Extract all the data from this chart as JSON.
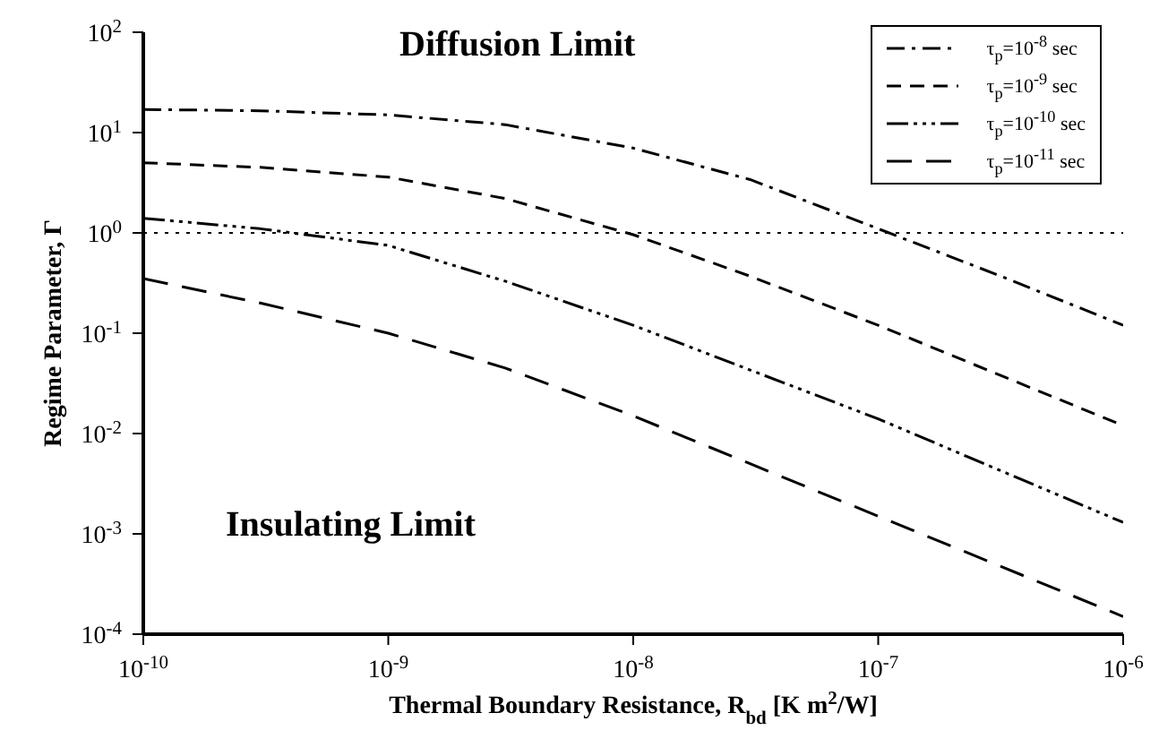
{
  "chart_data": {
    "type": "line",
    "xlabel": "Thermal Boundary Resistance, R$_{bd}$ [K m$^{2}$/W]",
    "ylabel": "Regime Parameter, Γ",
    "x": [
      1e-10,
      3e-10,
      1e-09,
      3e-09,
      1e-08,
      3e-08,
      1e-07,
      3e-07,
      1e-06
    ],
    "series": [
      {
        "name": "τ$_{p}$=10$^{-8}$ sec",
        "color": "#000000",
        "line_style": "dashed",
        "values": [
          17,
          16.5,
          15,
          12,
          7,
          3.4,
          1.1,
          0.39,
          0.12
        ]
      },
      {
        "name": "τ$_{p}$=10$^{-9}$ sec",
        "color": "#000000",
        "line_style": "dashed",
        "values": [
          5,
          4.5,
          3.6,
          2.2,
          0.96,
          0.37,
          0.12,
          0.04,
          0.012
        ]
      },
      {
        "name": "τ$_{p}$=10$^{-10}$ sec",
        "color": "#000000",
        "line_style": "dashed",
        "values": [
          1.4,
          1.1,
          0.75,
          0.33,
          0.12,
          0.043,
          0.014,
          0.0045,
          0.0013
        ]
      },
      {
        "name": "τ$_{p}$=10$^{-11}$ sec",
        "color": "#000000",
        "line_style": "dashed",
        "values": [
          0.35,
          0.2,
          0.1,
          0.045,
          0.015,
          0.005,
          0.0015,
          0.0005,
          0.00015
        ]
      }
    ],
    "log": "xy",
    "xlim": [
      1e-10,
      1e-06
    ],
    "ylim": [
      0.0001,
      100
    ],
    "xticks": [
      {
        "value": 1e-10,
        "label": "10$^{-10}$"
      },
      {
        "value": 1e-09,
        "label": "10$^{-9}$"
      },
      {
        "value": 1e-08,
        "label": "10$^{-8}$"
      },
      {
        "value": 1e-07,
        "label": "10$^{-7}$"
      },
      {
        "value": 1e-06,
        "label": "10$^{-6}$"
      }
    ],
    "yticks": [
      {
        "value": 0.0001,
        "label": "10$^{-4}$"
      },
      {
        "value": 0.001,
        "label": "10$^{-3}$"
      },
      {
        "value": 0.01,
        "label": "10$^{-2}$"
      },
      {
        "value": 0.1,
        "label": "10$^{-1}$"
      },
      {
        "value": 1,
        "label": "10$^{0}$"
      },
      {
        "value": 10,
        "label": "10$^{1}$"
      },
      {
        "value": 100,
        "label": "10$^{2}$"
      }
    ],
    "ref_lines": [
      {
        "axis": "y",
        "value": 1,
        "color": "#000000",
        "line_style": "dotted"
      }
    ],
    "annotations": [
      "Diffusion Limit",
      "Insulating Limit"
    ],
    "legend": "top right",
    "grid": false,
    "marker": "none"
  }
}
